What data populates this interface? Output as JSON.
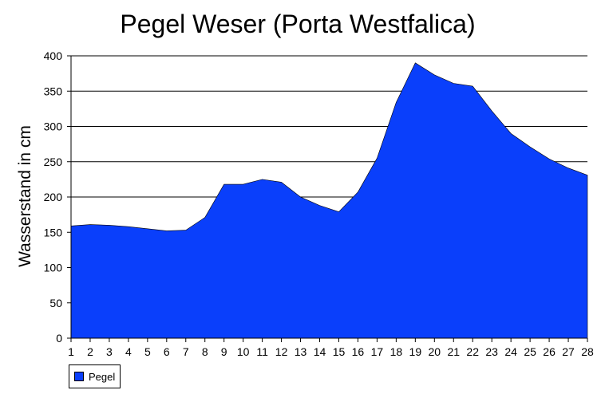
{
  "chart_data": {
    "type": "area",
    "title": "Pegel Weser (Porta Westfalica)",
    "xlabel": "",
    "ylabel": "Wasserstand in cm",
    "ylim": [
      0,
      400
    ],
    "yticks": [
      0,
      50,
      100,
      150,
      200,
      250,
      300,
      350,
      400
    ],
    "grid": true,
    "legend_position": "bottom-left",
    "categories": [
      "1",
      "2",
      "3",
      "4",
      "5",
      "6",
      "7",
      "8",
      "9",
      "10",
      "11",
      "12",
      "13",
      "14",
      "15",
      "16",
      "17",
      "18",
      "19",
      "20",
      "21",
      "22",
      "23",
      "24",
      "25",
      "26",
      "27",
      "28"
    ],
    "series": [
      {
        "name": "Pegel",
        "color": "#0a3ffb",
        "values": [
          159,
          161,
          160,
          158,
          155,
          152,
          153,
          171,
          218,
          218,
          225,
          221,
          200,
          188,
          179,
          207,
          255,
          334,
          390,
          373,
          361,
          357,
          322,
          290,
          271,
          254,
          241,
          231
        ]
      }
    ]
  }
}
